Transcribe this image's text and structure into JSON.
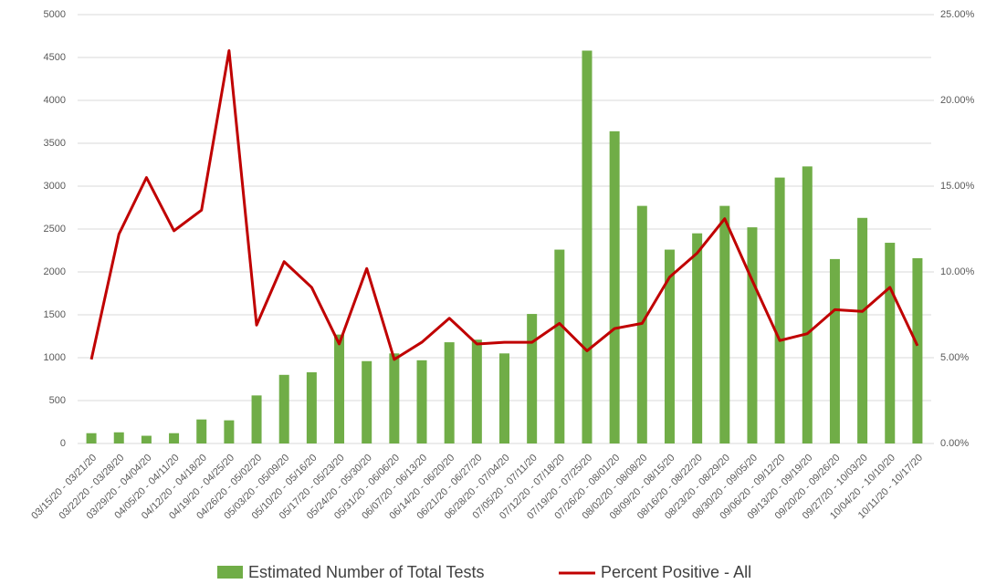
{
  "chart_data": {
    "type": "bar_line",
    "categories": [
      "03/15/20 - 03/21/20",
      "03/22/20 - 03/28/20",
      "03/29/20 - 04/04/20",
      "04/05/20 - 04/11/20",
      "04/12/20 - 04/18/20",
      "04/19/20 - 04/25/20",
      "04/26/20 - 05/02/20",
      "05/03/20 - 05/09/20",
      "05/10/20 - 05/16/20",
      "05/17/20 - 05/23/20",
      "05/24/20 - 05/30/20",
      "05/31/20 - 06/06/20",
      "06/07/20 - 06/13/20",
      "06/14/20 - 06/20/20",
      "06/21/20 - 06/27/20",
      "06/28/20 - 07/04/20",
      "07/05/20 - 07/11/20",
      "07/12/20 - 07/18/20",
      "07/19/20 - 07/25/20",
      "07/26/20 - 08/01/20",
      "08/02/20 - 08/08/20",
      "08/09/20 - 08/15/20",
      "08/16/20 - 08/22/20",
      "08/23/20 - 08/29/20",
      "08/30/20 - 09/05/20",
      "09/06/20 - 09/12/20",
      "09/13/20 - 09/19/20",
      "09/20/20 - 09/26/20",
      "09/27/20 - 10/03/20",
      "10/04/20 - 10/10/20",
      "10/11/20 - 10/17/20"
    ],
    "series": [
      {
        "name": "Estimated Number of Total Tests",
        "type": "bar",
        "color": "#70ad47",
        "values": [
          120,
          130,
          90,
          120,
          280,
          270,
          560,
          800,
          830,
          1270,
          960,
          1050,
          970,
          1180,
          1210,
          1050,
          1510,
          2260,
          4580,
          3640,
          2770,
          2260,
          2450,
          2770,
          2520,
          3100,
          3230,
          2150,
          2630,
          2340,
          2160
        ]
      },
      {
        "name": "Percent Positive - All",
        "type": "line",
        "axis": "y2",
        "color": "#c00000",
        "values": [
          4.9,
          12.2,
          15.5,
          12.4,
          13.6,
          22.9,
          6.9,
          10.6,
          9.1,
          5.8,
          10.2,
          4.9,
          5.9,
          7.3,
          5.8,
          5.9,
          5.9,
          7.0,
          5.4,
          6.7,
          7.0,
          9.7,
          11.1,
          13.1,
          9.5,
          6.0,
          6.4,
          7.8,
          7.7,
          9.1,
          5.7
        ]
      }
    ],
    "ylim": [
      0,
      5000
    ],
    "yticks": [
      0,
      500,
      1000,
      1500,
      2000,
      2500,
      3000,
      3500,
      4000,
      4500,
      5000
    ],
    "y2lim": [
      0,
      25
    ],
    "y2ticks": [
      {
        "value": 0,
        "label": "0.00%"
      },
      {
        "value": 5,
        "label": "5.00%"
      },
      {
        "value": 10,
        "label": "10.00%"
      },
      {
        "value": 15,
        "label": "15.00%"
      },
      {
        "value": 20,
        "label": "20.00%"
      },
      {
        "value": 25,
        "label": "25.00%"
      }
    ],
    "grid": true
  }
}
